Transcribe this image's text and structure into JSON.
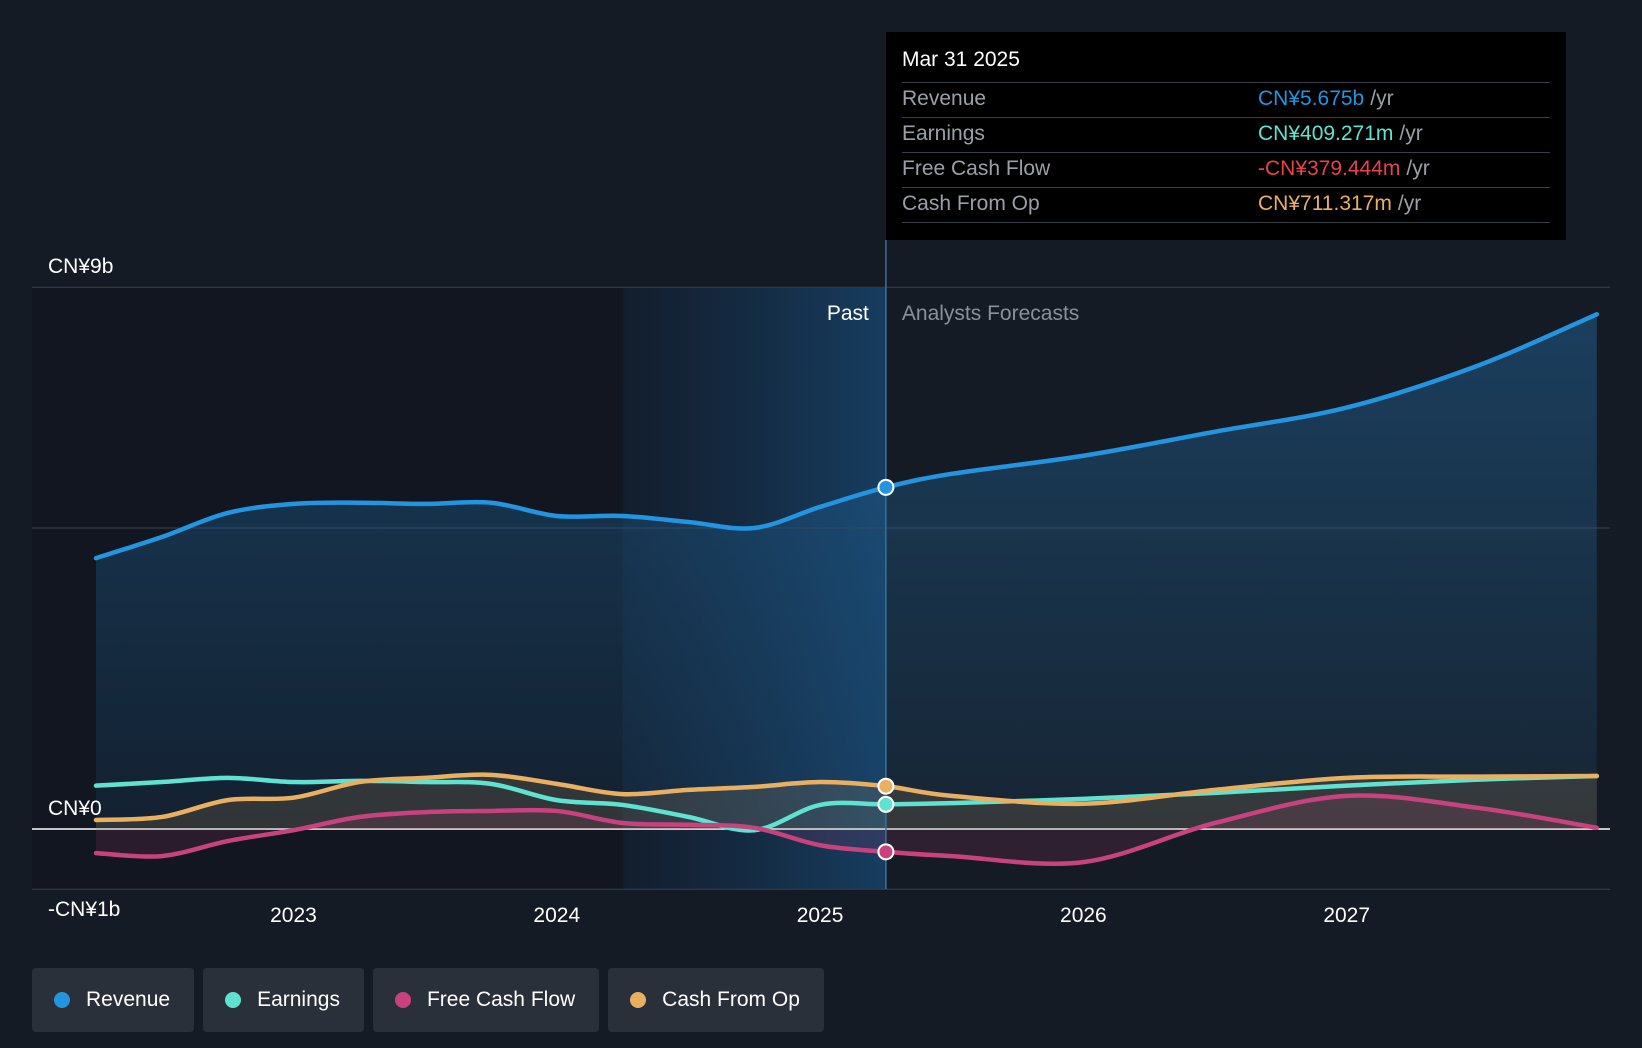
{
  "chart_data": {
    "type": "area",
    "x_range": [
      2022.25,
      2027.95
    ],
    "y_range": [
      -1.0,
      9.0
    ],
    "y_unit": "billion CNY",
    "y_labels": [
      {
        "value": 9,
        "label": "CN¥9b"
      },
      {
        "value": 0,
        "label": "CN¥0"
      },
      {
        "value": -1,
        "label": "-CN¥1b"
      }
    ],
    "gridlines": [
      9,
      5,
      0,
      -1
    ],
    "x_ticks": [
      {
        "value": 2023,
        "label": "2023"
      },
      {
        "value": 2024,
        "label": "2024"
      },
      {
        "value": 2025,
        "label": "2025"
      },
      {
        "value": 2026,
        "label": "2026"
      },
      {
        "value": 2027,
        "label": "2027"
      }
    ],
    "past_label": "Past",
    "forecast_label": "Analysts Forecasts",
    "past_shade_start": 2024.25,
    "divider": 2025.25,
    "series": [
      {
        "name": "Revenue",
        "color": "#2394e0",
        "fill": true,
        "marker": 2025.25,
        "points": [
          [
            2022.25,
            4.5
          ],
          [
            2022.5,
            4.85
          ],
          [
            2022.75,
            5.25
          ],
          [
            2023.0,
            5.4
          ],
          [
            2023.25,
            5.42
          ],
          [
            2023.5,
            5.4
          ],
          [
            2023.75,
            5.42
          ],
          [
            2024.0,
            5.2
          ],
          [
            2024.25,
            5.2
          ],
          [
            2024.5,
            5.1
          ],
          [
            2024.75,
            5.0
          ],
          [
            2025.0,
            5.35
          ],
          [
            2025.25,
            5.675
          ],
          [
            2025.5,
            5.9
          ],
          [
            2026.0,
            6.2
          ],
          [
            2026.5,
            6.6
          ],
          [
            2027.0,
            7.0
          ],
          [
            2027.5,
            7.7
          ],
          [
            2027.95,
            8.55
          ]
        ]
      },
      {
        "name": "Earnings",
        "color": "#5fe3d0",
        "fill": false,
        "marker": 2025.25,
        "points": [
          [
            2022.25,
            0.72
          ],
          [
            2022.5,
            0.78
          ],
          [
            2022.75,
            0.85
          ],
          [
            2023.0,
            0.78
          ],
          [
            2023.25,
            0.8
          ],
          [
            2023.5,
            0.78
          ],
          [
            2023.75,
            0.75
          ],
          [
            2024.0,
            0.48
          ],
          [
            2024.25,
            0.4
          ],
          [
            2024.5,
            0.2
          ],
          [
            2024.75,
            -0.02
          ],
          [
            2025.0,
            0.4
          ],
          [
            2025.25,
            0.409
          ],
          [
            2025.5,
            0.43
          ],
          [
            2026.0,
            0.5
          ],
          [
            2026.5,
            0.6
          ],
          [
            2027.0,
            0.72
          ],
          [
            2027.5,
            0.82
          ],
          [
            2027.95,
            0.88
          ]
        ]
      },
      {
        "name": "Free Cash Flow",
        "color": "#c8437e",
        "fill": true,
        "marker": 2025.25,
        "points": [
          [
            2022.25,
            -0.4
          ],
          [
            2022.5,
            -0.45
          ],
          [
            2022.75,
            -0.2
          ],
          [
            2023.0,
            -0.02
          ],
          [
            2023.25,
            0.2
          ],
          [
            2023.5,
            0.28
          ],
          [
            2023.75,
            0.3
          ],
          [
            2024.0,
            0.3
          ],
          [
            2024.25,
            0.1
          ],
          [
            2024.5,
            0.07
          ],
          [
            2024.75,
            0.02
          ],
          [
            2025.0,
            -0.27
          ],
          [
            2025.25,
            -0.379
          ],
          [
            2025.5,
            -0.45
          ],
          [
            2026.0,
            -0.55
          ],
          [
            2026.5,
            0.1
          ],
          [
            2027.0,
            0.55
          ],
          [
            2027.5,
            0.35
          ],
          [
            2027.95,
            0.02
          ]
        ]
      },
      {
        "name": "Cash From Op",
        "color": "#e9b062",
        "fill": true,
        "marker": 2025.25,
        "points": [
          [
            2022.25,
            0.15
          ],
          [
            2022.5,
            0.2
          ],
          [
            2022.75,
            0.48
          ],
          [
            2023.0,
            0.52
          ],
          [
            2023.25,
            0.78
          ],
          [
            2023.5,
            0.85
          ],
          [
            2023.75,
            0.9
          ],
          [
            2024.0,
            0.75
          ],
          [
            2024.25,
            0.58
          ],
          [
            2024.5,
            0.65
          ],
          [
            2024.75,
            0.7
          ],
          [
            2025.0,
            0.78
          ],
          [
            2025.25,
            0.711
          ],
          [
            2025.5,
            0.55
          ],
          [
            2026.0,
            0.42
          ],
          [
            2026.5,
            0.65
          ],
          [
            2027.0,
            0.85
          ],
          [
            2027.5,
            0.87
          ],
          [
            2027.95,
            0.88
          ]
        ]
      }
    ]
  },
  "tooltip": {
    "date": "Mar 31 2025",
    "unit": "/yr",
    "rows": [
      {
        "label": "Revenue",
        "value": "CN¥5.675b",
        "color": "#2394e0"
      },
      {
        "label": "Earnings",
        "value": "CN¥409.271m",
        "color": "#5fe3d0"
      },
      {
        "label": "Free Cash Flow",
        "value": "-CN¥379.444m",
        "color": "#e8434b"
      },
      {
        "label": "Cash From Op",
        "value": "CN¥711.317m",
        "color": "#e9b062"
      }
    ]
  },
  "legend": [
    {
      "label": "Revenue",
      "color": "#2394e0"
    },
    {
      "label": "Earnings",
      "color": "#5fe3d0"
    },
    {
      "label": "Free Cash Flow",
      "color": "#c8437e"
    },
    {
      "label": "Cash From Op",
      "color": "#e9b062"
    }
  ]
}
